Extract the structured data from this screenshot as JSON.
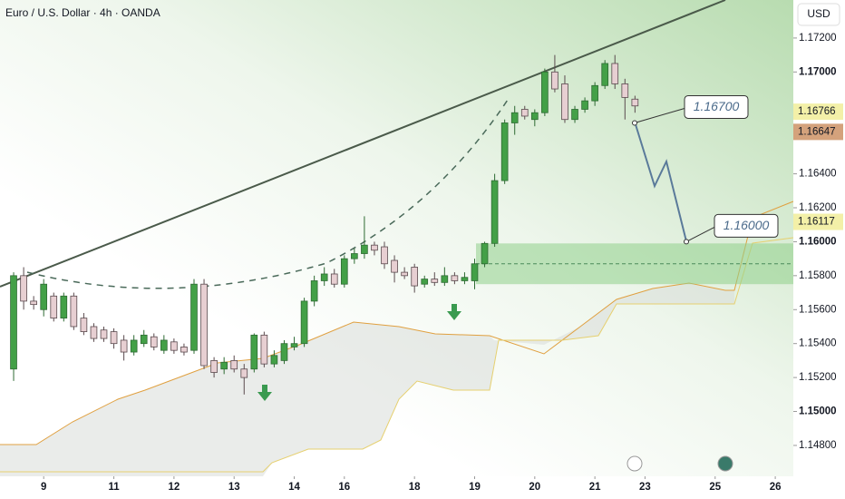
{
  "chart_data": {
    "type": "candlestick",
    "title": "Euro / U.S. Dollar · 4h · OANDA",
    "currency": "USD",
    "up_color": "#43a047",
    "down_color": "#e7cfd2",
    "open": [
      1.1525,
      1.158,
      1.1565,
      1.156,
      1.1568,
      1.1555,
      1.1568,
      1.1555,
      1.155,
      1.1548,
      1.1547,
      1.1542,
      1.1535,
      1.154,
      1.1544,
      1.1536,
      1.1541,
      1.1538,
      1.1536,
      1.1575,
      1.153,
      1.1525,
      1.153,
      1.1525,
      1.1525,
      1.1545,
      1.1528,
      1.153,
      1.1538,
      1.154,
      1.1565,
      1.1577,
      1.1581,
      1.1575,
      1.159,
      1.1593,
      1.1598,
      1.1597,
      1.1589,
      1.1582,
      1.1585,
      1.1575,
      1.1578,
      1.1576,
      1.158,
      1.1577,
      1.1577,
      1.1587,
      1.1599,
      1.1636,
      1.167,
      1.1678,
      1.1672,
      1.1676,
      1.17,
      1.1693,
      1.1672,
      1.1678,
      1.1683,
      1.1692,
      1.1705,
      1.1693,
      1.1684
    ],
    "high": [
      1.1582,
      1.1585,
      1.1568,
      1.1578,
      1.157,
      1.157,
      1.157,
      1.1558,
      1.1552,
      1.155,
      1.1549,
      1.1545,
      1.1545,
      1.1548,
      1.1546,
      1.1545,
      1.1543,
      1.154,
      1.1578,
      1.1578,
      1.1532,
      1.1532,
      1.1533,
      1.1528,
      1.1546,
      1.1547,
      1.1536,
      1.1542,
      1.1544,
      1.1567,
      1.158,
      1.1585,
      1.1584,
      1.1592,
      1.1596,
      1.1615,
      1.16,
      1.16,
      1.1592,
      1.1585,
      1.1587,
      1.158,
      1.1582,
      1.1585,
      1.1582,
      1.1582,
      1.159,
      1.16,
      1.164,
      1.1672,
      1.168,
      1.168,
      1.1678,
      1.1702,
      1.171,
      1.1698,
      1.168,
      1.1685,
      1.1694,
      1.1707,
      1.171,
      1.1696,
      1.1686
    ],
    "low": [
      1.1518,
      1.156,
      1.156,
      1.1556,
      1.1553,
      1.1553,
      1.1548,
      1.1545,
      1.1541,
      1.1541,
      1.1537,
      1.153,
      1.1533,
      1.1538,
      1.1536,
      1.1534,
      1.1534,
      1.1533,
      1.1534,
      1.1525,
      1.152,
      1.1522,
      1.1523,
      1.151,
      1.1523,
      1.1526,
      1.1526,
      1.1528,
      1.1536,
      1.1538,
      1.1562,
      1.1574,
      1.1573,
      1.1573,
      1.1587,
      1.159,
      1.1592,
      1.1584,
      1.1576,
      1.1578,
      1.157,
      1.1573,
      1.1574,
      1.1574,
      1.1575,
      1.1575,
      1.1572,
      1.1585,
      1.1597,
      1.1634,
      1.1663,
      1.1672,
      1.1668,
      1.1674,
      1.1688,
      1.167,
      1.167,
      1.1676,
      1.168,
      1.169,
      1.169,
      1.1672,
      1.1676
    ],
    "close": [
      1.158,
      1.1565,
      1.1563,
      1.1575,
      1.1555,
      1.1568,
      1.155,
      1.1547,
      1.1543,
      1.1543,
      1.154,
      1.1535,
      1.1542,
      1.1545,
      1.1538,
      1.1542,
      1.1536,
      1.1535,
      1.1575,
      1.1527,
      1.1523,
      1.1529,
      1.1525,
      1.152,
      1.1545,
      1.1528,
      1.1533,
      1.154,
      1.154,
      1.1565,
      1.1577,
      1.1581,
      1.1575,
      1.159,
      1.1593,
      1.1598,
      1.1595,
      1.1587,
      1.1582,
      1.158,
      1.1574,
      1.1578,
      1.1576,
      1.158,
      1.1577,
      1.1579,
      1.1587,
      1.1599,
      1.1636,
      1.167,
      1.1676,
      1.1674,
      1.1676,
      1.17,
      1.169,
      1.1672,
      1.1678,
      1.1683,
      1.1692,
      1.1705,
      1.1693,
      1.1685,
      1.168
    ],
    "xlim": [
      -1.36,
      77.8
    ],
    "xticks": [
      {
        "value": 3,
        "label": "9"
      },
      {
        "value": 10,
        "label": "11"
      },
      {
        "value": 16,
        "label": "12"
      },
      {
        "value": 22,
        "label": "13"
      },
      {
        "value": 28,
        "label": "14"
      },
      {
        "value": 33,
        "label": "16"
      },
      {
        "value": 40,
        "label": "18"
      },
      {
        "value": 46,
        "label": "19"
      },
      {
        "value": 52,
        "label": "20"
      },
      {
        "value": 58,
        "label": "21"
      },
      {
        "value": 63,
        "label": "23"
      },
      {
        "value": 70,
        "label": "25"
      },
      {
        "value": 76,
        "label": "26"
      }
    ],
    "ylim": [
      1.14618,
      1.17424
    ],
    "yticks": [
      {
        "value": 1.172,
        "label": "1.17200"
      },
      {
        "value": 1.17,
        "label": "1.17000"
      },
      {
        "value": 1.164,
        "label": "1.16400"
      },
      {
        "value": 1.162,
        "label": "1.16200"
      },
      {
        "value": 1.16,
        "label": "1.16000"
      },
      {
        "value": 1.158,
        "label": "1.15800"
      },
      {
        "value": 1.156,
        "label": "1.15600"
      },
      {
        "value": 1.154,
        "label": "1.15400"
      },
      {
        "value": 1.152,
        "label": "1.15200"
      },
      {
        "value": 1.15,
        "label": "1.15000"
      },
      {
        "value": 1.148,
        "label": "1.14800"
      }
    ],
    "price_tags": [
      {
        "value": 1.16766,
        "label": "1.16766",
        "color": "#f3f0a8"
      },
      {
        "value": 1.16647,
        "label": "1.16647",
        "color": "#d4a27c"
      },
      {
        "value": 1.16117,
        "label": "1.16117",
        "color": "#f3f0a8"
      }
    ],
    "annotations": [
      {
        "label": "1.16700",
        "value": 1.167
      },
      {
        "label": "1.16000",
        "value": 1.16
      }
    ],
    "zone": {
      "top": 1.1599,
      "bottom": 1.1575,
      "mid": 1.1587
    }
  }
}
